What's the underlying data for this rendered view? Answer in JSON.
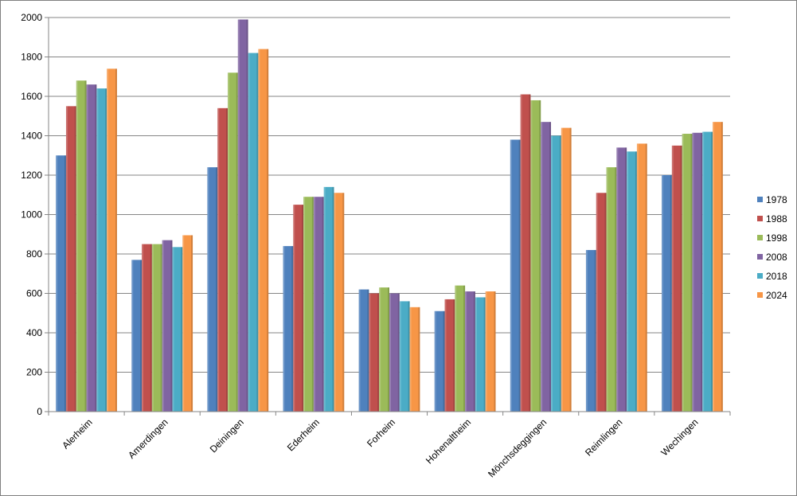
{
  "chart_data": {
    "type": "bar",
    "title": "",
    "xlabel": "",
    "ylabel": "",
    "ylim": [
      0,
      2000
    ],
    "yticks": [
      0,
      200,
      400,
      600,
      800,
      1000,
      1200,
      1400,
      1600,
      1800,
      2000
    ],
    "grid": true,
    "legend_position": "right",
    "categories": [
      "Alerheim",
      "Amerdingen",
      "Deiningen",
      "Ederheim",
      "Forheim",
      "Hohenaltheim",
      "Mönchsdeggingen",
      "Reimlingen",
      "Wechingen"
    ],
    "series": [
      {
        "name": "1978",
        "color": "#4f81bd",
        "values": [
          1300,
          770,
          1240,
          840,
          620,
          510,
          1380,
          820,
          1200
        ]
      },
      {
        "name": "1988",
        "color": "#c0504d",
        "values": [
          1550,
          850,
          1540,
          1050,
          600,
          570,
          1610,
          1110,
          1350
        ]
      },
      {
        "name": "1998",
        "color": "#9bbb59",
        "values": [
          1680,
          850,
          1720,
          1090,
          630,
          640,
          1580,
          1240,
          1410
        ]
      },
      {
        "name": "2008",
        "color": "#8064a2",
        "values": [
          1660,
          870,
          1990,
          1090,
          600,
          610,
          1470,
          1340,
          1415
        ]
      },
      {
        "name": "2018",
        "color": "#4bacc6",
        "values": [
          1640,
          835,
          1820,
          1140,
          560,
          580,
          1400,
          1320,
          1420
        ]
      },
      {
        "name": "2024",
        "color": "#f79646",
        "values": [
          1740,
          895,
          1840,
          1110,
          530,
          610,
          1440,
          1360,
          1470
        ]
      }
    ]
  }
}
